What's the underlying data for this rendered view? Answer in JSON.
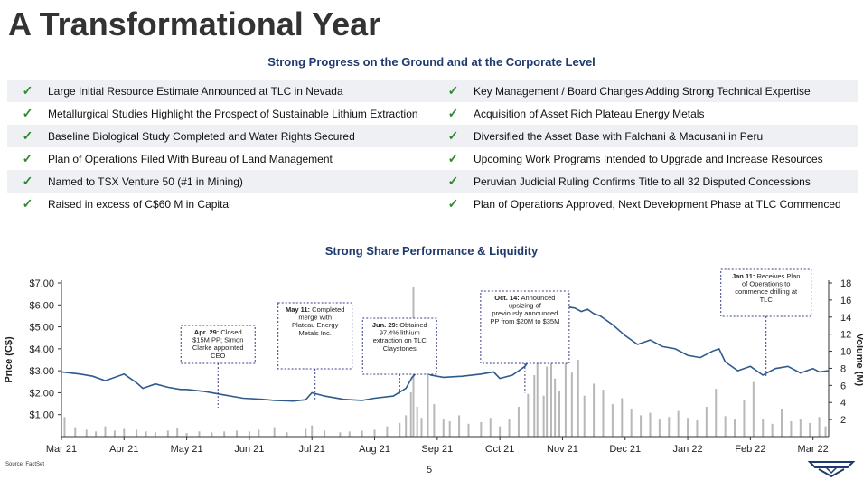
{
  "page": {
    "title": "A Transformational Year",
    "subtitle_progress": "Strong Progress on the Ground and at the Corporate Level",
    "subtitle_chart": "Strong Share Performance & Liquidity",
    "source": "Source: FactSet",
    "page_number": "5",
    "check_glyph": "✓"
  },
  "progress": {
    "left": [
      "Large Initial Resource Estimate Announced at TLC in Nevada",
      "Metallurgical Studies Highlight the Prospect of Sustainable Lithium Extraction",
      "Baseline Biological Study Completed and Water Rights Secured",
      "Plan of Operations Filed With Bureau of Land Management",
      "Named to TSX Venture 50 (#1 in Mining)",
      "Raised in excess of C$60 M in Capital"
    ],
    "right": [
      "Key Management / Board Changes Adding Strong Technical Expertise",
      "Acquisition of Asset Rich Plateau Energy Metals",
      "Diversified the Asset Base with Falchani & Macusani in Peru",
      "Upcoming Work Programs Intended to Upgrade and Increase Resources",
      "Peruvian Judicial Ruling Confirms Title to all 32 Disputed Concessions",
      "Plan of Operations Approved, Next Development Phase at TLC Commenced"
    ]
  },
  "colors": {
    "price_line": "#2e5a8c",
    "volume_bar": "#b8b8b8",
    "annotation_border": "#3a3f8a",
    "check": "#2e8b2e",
    "subtitle": "#1e3a6e"
  },
  "chart_data": {
    "type": "line",
    "title": "Strong Share Performance & Liquidity",
    "xlabel": "",
    "ylabel": "Price (C$)",
    "ylabel_right": "Volume (M)",
    "ylim": [
      0,
      7
    ],
    "ylim_right": [
      0,
      18
    ],
    "x_ticks": [
      "Mar 21",
      "Apr 21",
      "May 21",
      "Jun 21",
      "Jul 21",
      "Aug 21",
      "Sep 21",
      "Oct 21",
      "Nov 21",
      "Dec 21",
      "Jan 22",
      "Feb 22",
      "Mar 22"
    ],
    "y_ticks": [
      "$1.00",
      "$2.00",
      "$3.00",
      "$4.00",
      "$5.00",
      "$6.00",
      "$7.00"
    ],
    "y_ticks_right": [
      "2",
      "4",
      "6",
      "8",
      "10",
      "12",
      "14",
      "16",
      "18"
    ],
    "series": [
      {
        "key": "price",
        "x": [
          0,
          0.3,
          0.5,
          0.7,
          1.0,
          1.2,
          1.3,
          1.5,
          1.7,
          1.9,
          2.0,
          2.3,
          2.6,
          2.9,
          3.2,
          3.4,
          3.7,
          3.9,
          4.0,
          4.2,
          4.5,
          4.8,
          5.0,
          5.3,
          5.5,
          5.6,
          5.7,
          5.8,
          5.9,
          6.1,
          6.4,
          6.7,
          6.9,
          7.0,
          7.2,
          7.4,
          7.5,
          7.6,
          7.7,
          7.8,
          7.9,
          8.0,
          8.1,
          8.2,
          8.3,
          8.4,
          8.5,
          8.6,
          8.8,
          9.0,
          9.2,
          9.4,
          9.6,
          9.8,
          10.0,
          10.2,
          10.4,
          10.5,
          10.6,
          10.8,
          11.0,
          11.2,
          11.4,
          11.6,
          11.8,
          11.9,
          12.0,
          12.1,
          12.25
        ],
        "values": [
          2.95,
          2.85,
          2.75,
          2.55,
          2.85,
          2.45,
          2.2,
          2.4,
          2.25,
          2.15,
          2.15,
          2.05,
          1.9,
          1.75,
          1.7,
          1.65,
          1.62,
          1.68,
          2.0,
          1.85,
          1.7,
          1.65,
          1.75,
          1.85,
          2.2,
          2.7,
          3.0,
          2.95,
          2.8,
          2.7,
          2.75,
          2.85,
          2.95,
          2.65,
          2.8,
          3.2,
          3.6,
          4.1,
          4.5,
          4.7,
          4.9,
          5.2,
          5.9,
          5.85,
          5.7,
          5.8,
          5.6,
          5.5,
          5.1,
          4.6,
          4.2,
          4.4,
          4.1,
          4.0,
          3.7,
          3.6,
          3.9,
          4.0,
          3.4,
          3.0,
          3.2,
          2.8,
          3.1,
          3.2,
          2.9,
          3.0,
          3.1,
          2.95,
          3.0
        ]
      },
      {
        "key": "volume",
        "x": [
          0.05,
          0.22,
          0.4,
          0.55,
          0.7,
          0.85,
          1.0,
          1.2,
          1.35,
          1.5,
          1.7,
          1.85,
          2.0,
          2.2,
          2.4,
          2.6,
          2.8,
          3.0,
          3.15,
          3.4,
          3.6,
          3.9,
          4.0,
          4.2,
          4.45,
          4.6,
          4.8,
          5.0,
          5.2,
          5.4,
          5.5,
          5.58,
          5.62,
          5.68,
          5.75,
          5.85,
          5.95,
          6.1,
          6.2,
          6.35,
          6.5,
          6.7,
          6.85,
          7.0,
          7.15,
          7.3,
          7.45,
          7.55,
          7.6,
          7.7,
          7.75,
          7.82,
          7.88,
          7.95,
          8.05,
          8.15,
          8.25,
          8.35,
          8.5,
          8.65,
          8.8,
          8.95,
          9.1,
          9.25,
          9.4,
          9.55,
          9.7,
          9.85,
          10.0,
          10.15,
          10.3,
          10.45,
          10.6,
          10.75,
          10.9,
          11.05,
          11.2,
          11.35,
          11.5,
          11.65,
          11.8,
          11.95,
          12.1,
          12.2
        ],
        "values": [
          2.3,
          1.1,
          0.8,
          0.6,
          1.2,
          0.7,
          0.9,
          0.8,
          0.6,
          0.5,
          0.7,
          1.0,
          0.4,
          0.6,
          0.5,
          0.6,
          0.7,
          0.6,
          0.8,
          1.1,
          0.5,
          0.9,
          1.3,
          0.7,
          0.5,
          0.6,
          0.7,
          0.8,
          1.2,
          1.6,
          2.5,
          5.2,
          17.5,
          3.5,
          2.2,
          10.0,
          3.8,
          2.0,
          1.8,
          2.5,
          1.5,
          1.7,
          2.2,
          1.2,
          2.0,
          3.5,
          5.0,
          7.2,
          11.5,
          4.8,
          8.2,
          9.6,
          6.8,
          5.3,
          10.4,
          7.5,
          9.0,
          4.8,
          6.2,
          5.5,
          3.8,
          4.5,
          3.2,
          2.5,
          2.8,
          2.0,
          2.3,
          3.0,
          2.2,
          1.9,
          3.5,
          5.6,
          2.4,
          2.0,
          4.3,
          6.4,
          2.1,
          1.5,
          3.2,
          1.8,
          2.0,
          1.6,
          2.3,
          1.2
        ]
      }
    ],
    "annotations": [
      {
        "x": 2.5,
        "y": 1.32,
        "bold": "Apr. 29:",
        "text": "Closed $15M PP; Simon Clarke appointed CEO"
      },
      {
        "x": 4.05,
        "y": 1.7,
        "bold": "May 11:",
        "text": "Completed merge with Plateau Energy Metals Inc."
      },
      {
        "x": 5.4,
        "y": 1.95,
        "bold": "Jun. 29:",
        "text": "Obtained 97.4% lithium extraction on TLC Claystones"
      },
      {
        "x": 7.4,
        "y": 2.0,
        "bold": "Oct. 14:",
        "text": "Announced upsizing of previously announced PP from $20M to $35M"
      },
      {
        "x": 11.25,
        "y": 2.67,
        "bold": "Jan 11:",
        "text": "Receives Plan of Operations to commence drilling at TLC"
      }
    ]
  }
}
